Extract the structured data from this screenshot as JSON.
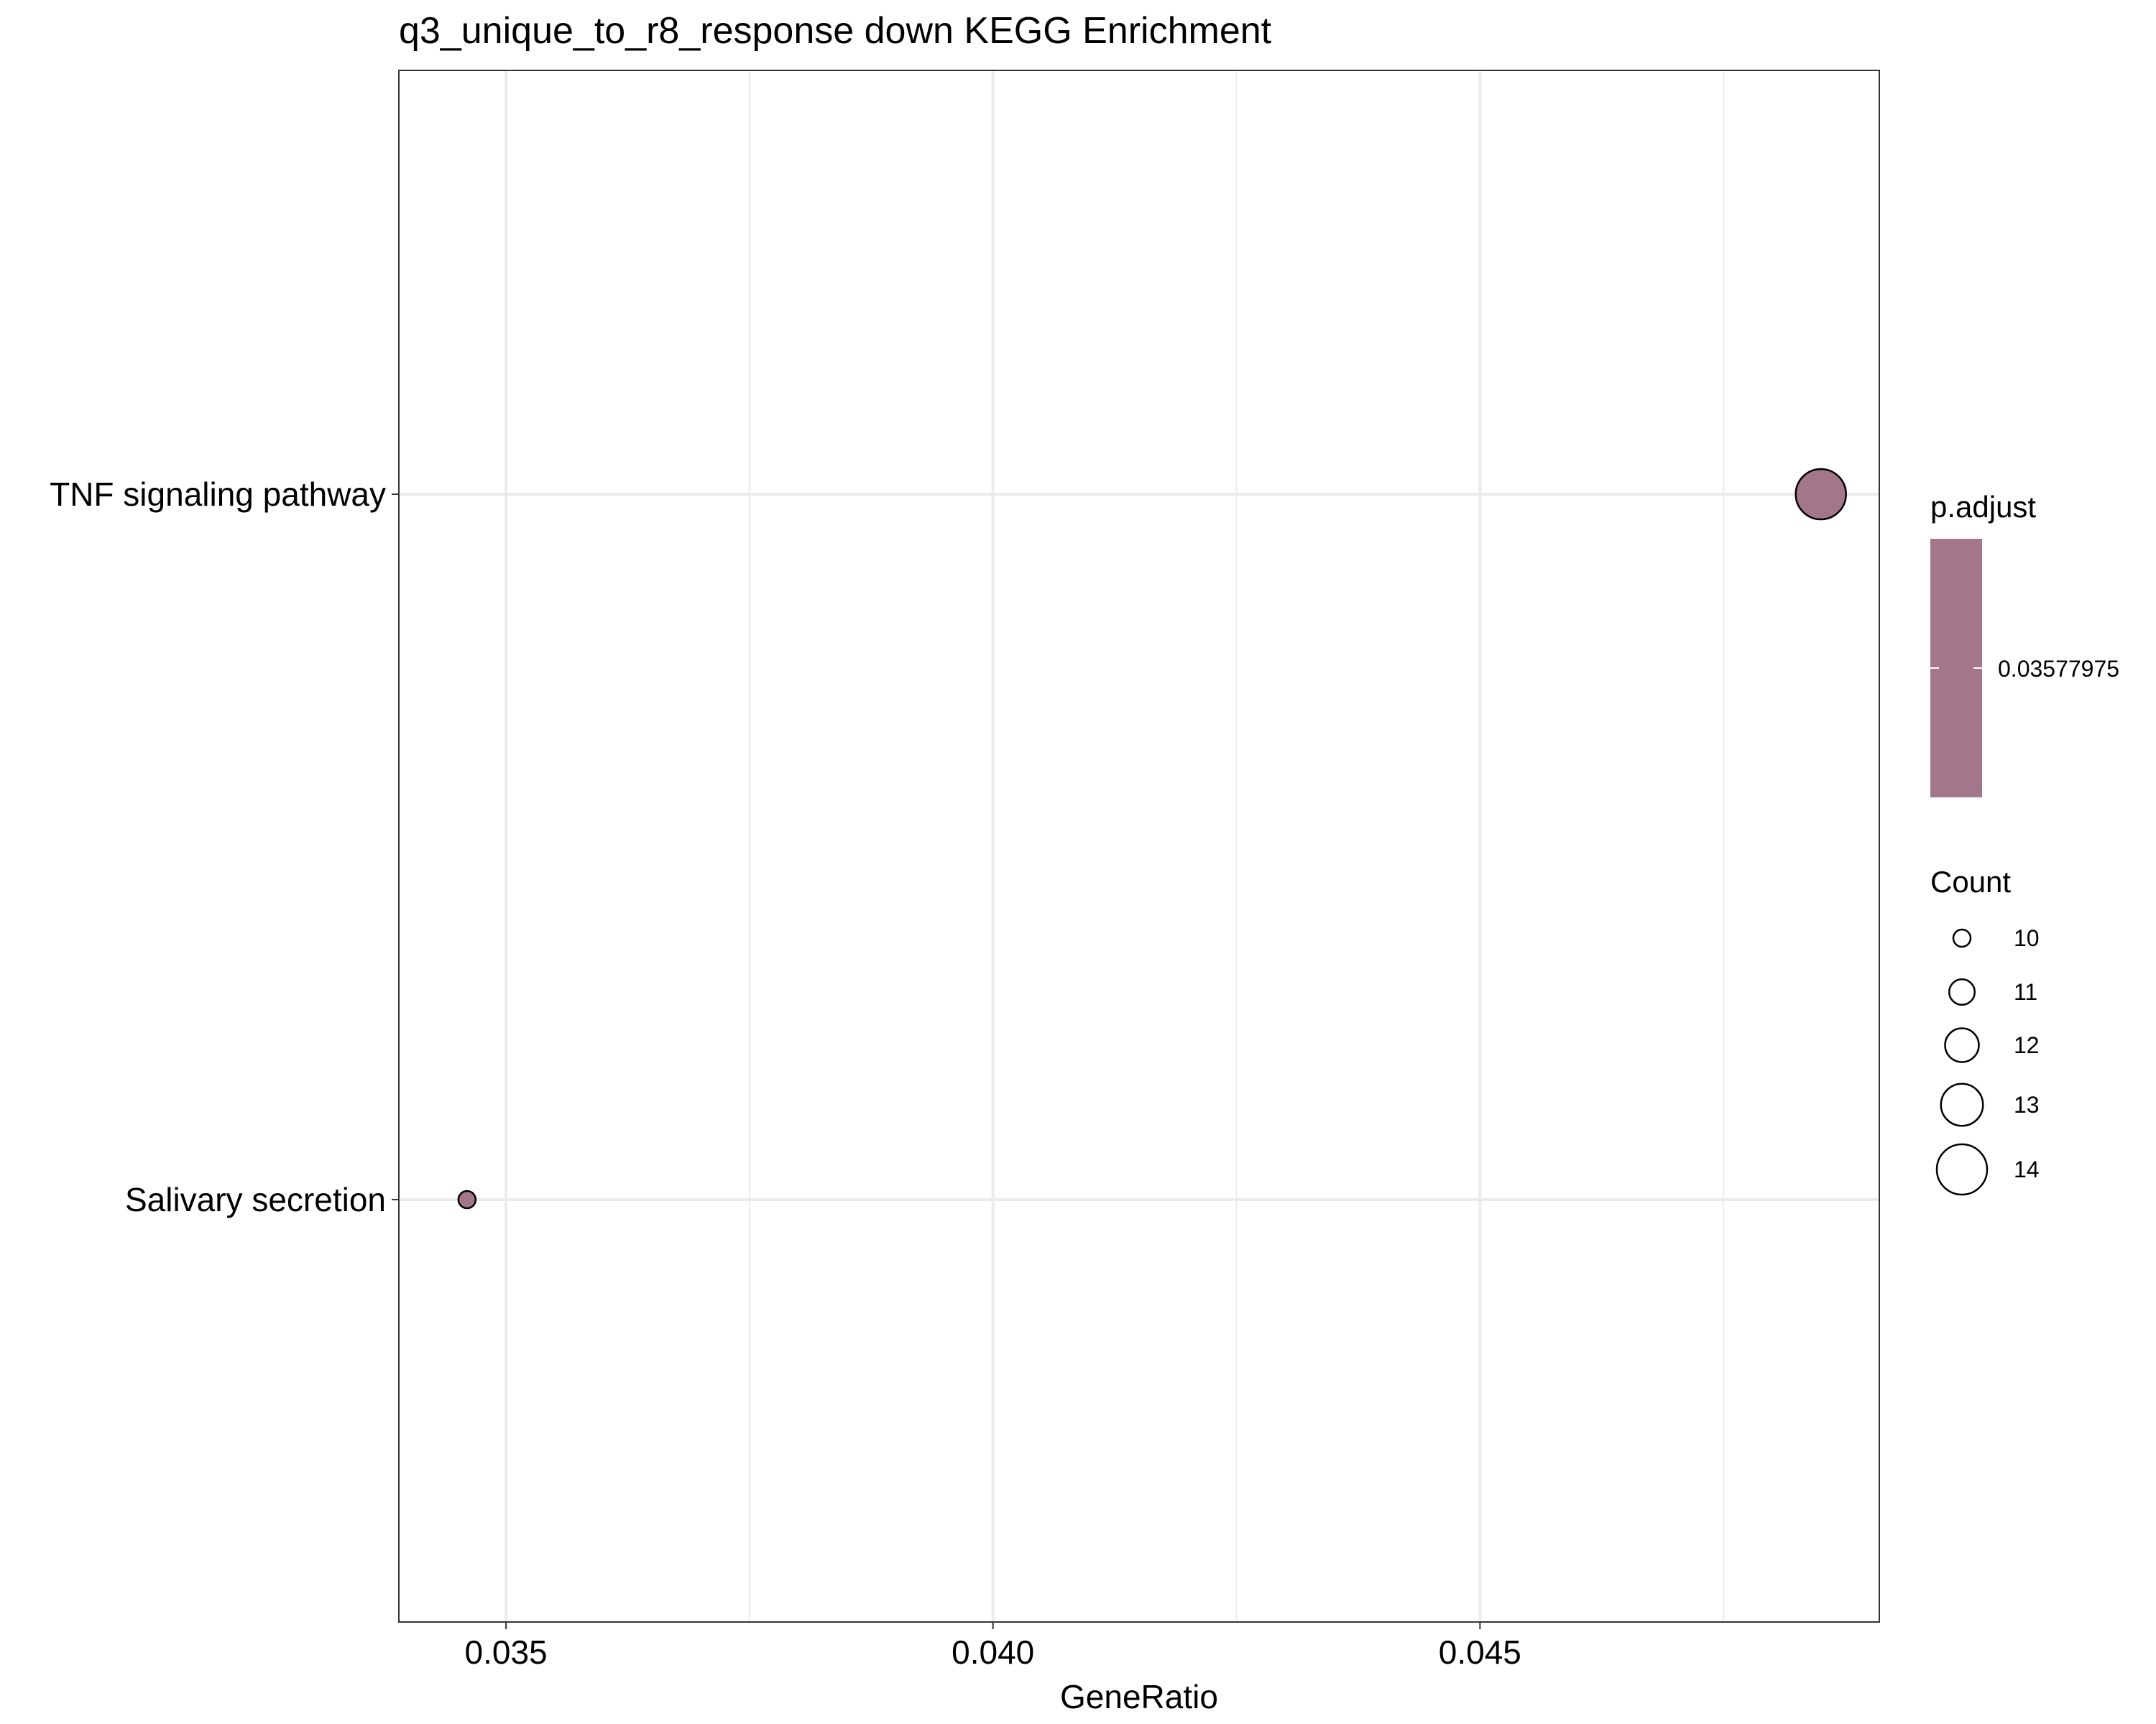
{
  "chart_data": {
    "type": "scatter",
    "title": "q3_unique_to_r8_response down KEGG Enrichment",
    "xlabel": "GeneRatio",
    "ylabel": "",
    "xlim": [
      0.0339,
      0.0491
    ],
    "x_ticks": [
      0.035,
      0.04,
      0.045
    ],
    "x_tick_labels": [
      "0.035",
      "0.040",
      "0.045"
    ],
    "categories": [
      "TNF signaling pathway",
      "Salivary secretion"
    ],
    "points": [
      {
        "category": "TNF signaling pathway",
        "gene_ratio": 0.0485,
        "count": 14,
        "p_adjust": 0.03577975
      },
      {
        "category": "Salivary secretion",
        "gene_ratio": 0.0346,
        "count": 10,
        "p_adjust": 0.03577975
      }
    ],
    "grid": true,
    "legend_position": "right",
    "color_legend": {
      "title": "p.adjust",
      "labels": [
        "0.03577975"
      ],
      "color": "#a3768c"
    },
    "size_legend": {
      "title": "Count",
      "values": [
        10,
        11,
        12,
        13,
        14
      ],
      "labels": [
        "10",
        "11",
        "12",
        "13",
        "14"
      ]
    }
  }
}
